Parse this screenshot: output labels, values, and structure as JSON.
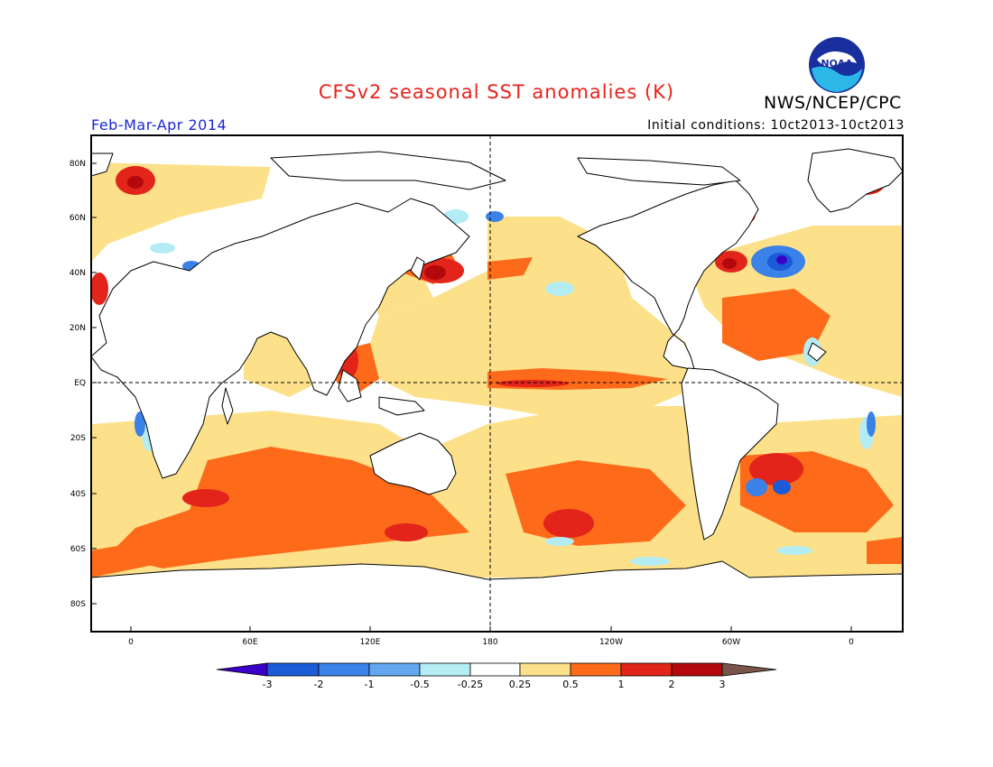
{
  "header": {
    "title": "CFSv2 seasonal SST anomalies (K)",
    "agency": "NWS/NCEP/CPC",
    "season": "Feb-Mar-Apr 2014",
    "initial_conditions": "Initial conditions: 10ct2013-10ct2013",
    "logo_text": "NOAA"
  },
  "map": {
    "lat_labels": [
      "80N",
      "60N",
      "40N",
      "20N",
      "EQ",
      "20S",
      "40S",
      "60S",
      "80S"
    ],
    "lon_labels": [
      "0",
      "60E",
      "120E",
      "180",
      "120W",
      "60W",
      "0"
    ],
    "reference_lines": [
      "Equator",
      "180"
    ]
  },
  "colorbar": {
    "unit": "K",
    "labels": [
      "-3",
      "-2",
      "-1",
      "-0.5",
      "-0.25",
      "0.25",
      "0.5",
      "1",
      "2",
      "3"
    ],
    "colors": [
      "#3a00c8",
      "#1c5bd8",
      "#3b82e8",
      "#62a8f0",
      "#b4ecf4",
      "#ffffff",
      "#fde18a",
      "#fd6a1a",
      "#e2241a",
      "#b3090c",
      "#785548"
    ]
  },
  "colors": {
    "title": "#e8231c",
    "season": "#1b27d6",
    "land": "#ffffff",
    "weak_warm": "#fde18a",
    "warm": "#fd6a1a",
    "strong_warm": "#e2241a",
    "very_strong_warm": "#b3090c",
    "weak_cool": "#b4ecf4",
    "cool": "#3b82e8",
    "strong_cool": "#1c5bd8"
  }
}
